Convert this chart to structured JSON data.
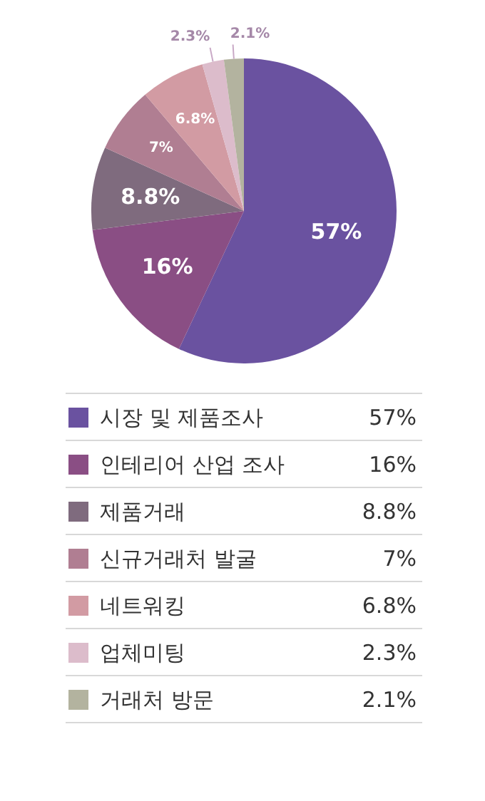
{
  "chart_data": {
    "type": "pie",
    "categories": [
      "시장 및 제품조사",
      "인테리어 산업 조사",
      "제품거래",
      "신규거래처 발굴",
      "네트워킹",
      "업체미팅",
      "거래처 방문"
    ],
    "values": [
      57,
      16,
      8.8,
      7,
      6.8,
      2.3,
      2.1
    ],
    "value_labels": [
      "57%",
      "16%",
      "8.8%",
      "7%",
      "6.8%",
      "2.3%",
      "2.1%"
    ],
    "colors": [
      "#6a52a0",
      "#8a4e84",
      "#7f6b7e",
      "#b07e92",
      "#d29ba3",
      "#dcbccb",
      "#b3b39f"
    ],
    "legend": "bottom"
  }
}
